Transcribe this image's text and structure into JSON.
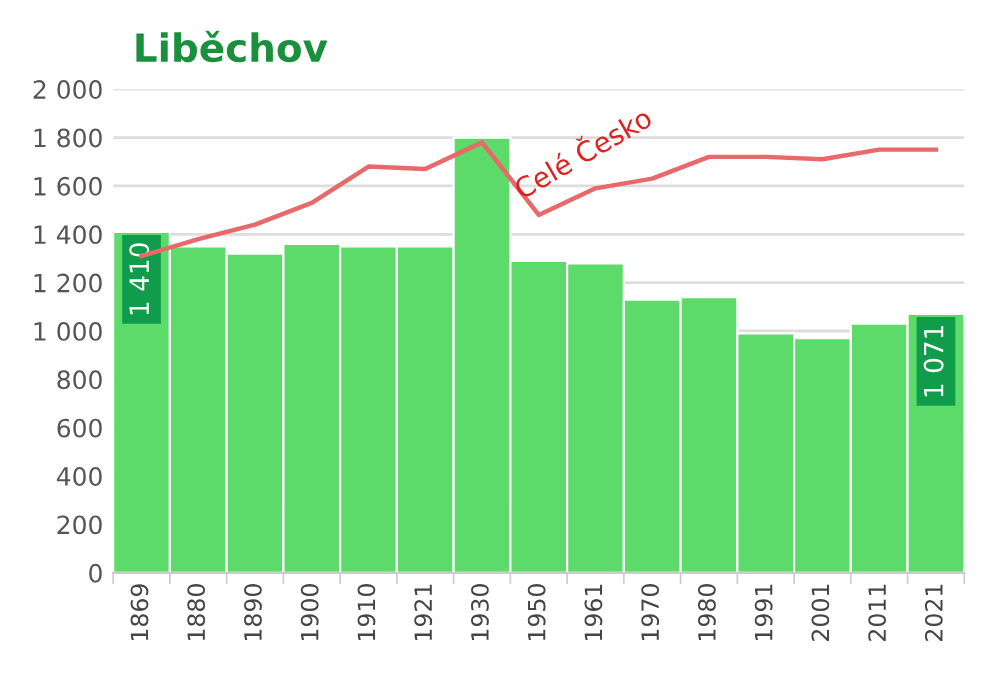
{
  "chart_data": {
    "type": "bar",
    "title": "Liběchov",
    "categories": [
      "1869",
      "1880",
      "1890",
      "1900",
      "1910",
      "1921",
      "1930",
      "1950",
      "1961",
      "1970",
      "1980",
      "1991",
      "2001",
      "2011",
      "2021"
    ],
    "series": [
      {
        "color": "#5cdb6a",
        "values": [
          1410,
          1350,
          1320,
          1360,
          1350,
          1350,
          1800,
          1290,
          1280,
          1130,
          1140,
          990,
          970,
          1030,
          1071
        ],
        "value_labels": [
          "1 410",
          null,
          null,
          null,
          null,
          null,
          null,
          null,
          null,
          null,
          null,
          null,
          null,
          null,
          "1 071"
        ]
      },
      {
        "type": "line",
        "name": "Celé Česko",
        "color": "#e8696a",
        "values": [
          1310,
          1380,
          1440,
          1530,
          1680,
          1670,
          1780,
          1480,
          1590,
          1630,
          1720,
          1720,
          1710,
          1750,
          1750
        ]
      }
    ],
    "ylim": [
      0,
      2000
    ],
    "yticks": [
      0,
      200,
      400,
      600,
      800,
      {
        "value": 1000,
        "label": "1 000"
      },
      {
        "value": 1200,
        "label": "1 200"
      },
      {
        "value": 1400,
        "label": "1 400"
      },
      {
        "value": 1600,
        "label": "1 600"
      },
      {
        "value": 1800,
        "label": "1 800"
      },
      {
        "value": 2000,
        "label": "2 000"
      }
    ],
    "grid": "y"
  }
}
